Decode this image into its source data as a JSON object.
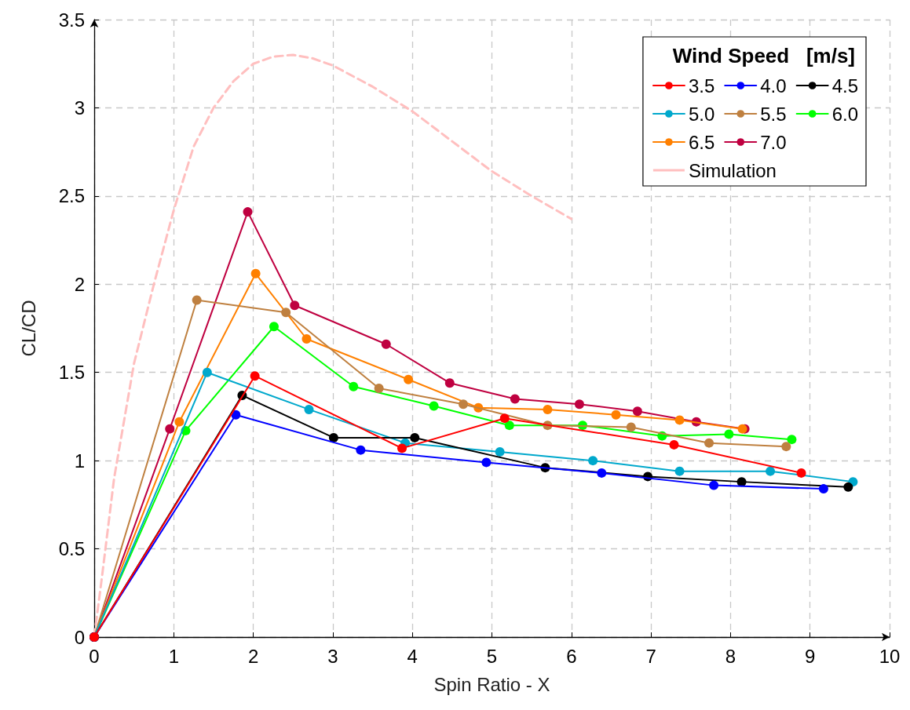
{
  "chart_data": {
    "type": "line",
    "xlabel": "Spin Ratio - X",
    "ylabel": "CL/CD",
    "legend_title": "Wind Speed   [m/s]",
    "legend": "top right",
    "grid": true,
    "marker": "circle",
    "line_style": "solid",
    "xlim": [
      0,
      10
    ],
    "xticks": [
      0,
      1,
      2,
      3,
      4,
      5,
      6,
      7,
      8,
      9,
      10
    ],
    "ylim": [
      0,
      3.5
    ],
    "yticks": [
      0,
      0.5,
      1,
      1.5,
      2,
      2.5,
      3,
      3.5
    ],
    "series": [
      {
        "name": "3.5",
        "color": "#ff0000",
        "x": [
          0,
          2.02,
          3.87,
          5.16,
          7.29,
          8.89
        ],
        "values": [
          0,
          1.48,
          1.07,
          1.24,
          1.09,
          0.93
        ]
      },
      {
        "name": "4.0",
        "color": "#0000ff",
        "x": [
          0,
          1.78,
          3.35,
          4.93,
          6.38,
          7.79,
          9.17
        ],
        "values": [
          0,
          1.26,
          1.06,
          0.99,
          0.93,
          0.86,
          0.84
        ]
      },
      {
        "name": "4.5",
        "color": "#000000",
        "x": [
          0,
          1.86,
          3.01,
          4.03,
          5.67,
          6.96,
          8.14,
          9.48
        ],
        "values": [
          0,
          1.37,
          1.13,
          1.13,
          0.96,
          0.91,
          0.88,
          0.85
        ]
      },
      {
        "name": "5.0",
        "color": "#00a8cc",
        "x": [
          0,
          1.42,
          2.7,
          3.91,
          5.1,
          6.27,
          7.36,
          8.5,
          9.54
        ],
        "values": [
          0,
          1.5,
          1.29,
          1.1,
          1.05,
          1.0,
          0.94,
          0.94,
          0.88
        ]
      },
      {
        "name": "5.5",
        "color": "#bf8040",
        "x": [
          0,
          1.29,
          2.41,
          3.58,
          4.64,
          5.7,
          6.75,
          7.73,
          8.7
        ],
        "values": [
          0,
          1.91,
          1.84,
          1.41,
          1.32,
          1.2,
          1.19,
          1.1,
          1.08
        ]
      },
      {
        "name": "6.0",
        "color": "#00ff00",
        "x": [
          0,
          1.15,
          2.26,
          3.26,
          4.27,
          5.22,
          6.14,
          7.14,
          7.98,
          8.77
        ],
        "values": [
          0,
          1.17,
          1.76,
          1.42,
          1.31,
          1.2,
          1.2,
          1.14,
          1.15,
          1.12
        ]
      },
      {
        "name": "6.5",
        "color": "#ff8000",
        "x": [
          0,
          1.07,
          2.03,
          2.67,
          3.95,
          4.83,
          5.7,
          6.56,
          7.36,
          8.15
        ],
        "values": [
          0,
          1.22,
          2.06,
          1.69,
          1.46,
          1.3,
          1.29,
          1.26,
          1.23,
          1.18
        ]
      },
      {
        "name": "7.0",
        "color": "#bf0040",
        "x": [
          0,
          0.95,
          1.93,
          2.52,
          3.67,
          4.47,
          5.29,
          6.1,
          6.83,
          7.57,
          8.18
        ],
        "values": [
          0,
          1.18,
          2.41,
          1.88,
          1.66,
          1.44,
          1.35,
          1.32,
          1.28,
          1.22,
          1.18
        ]
      },
      {
        "name": "Simulation",
        "color": "#ffbfbf",
        "marker": "none",
        "line_style": "dashed",
        "x": [
          0,
          0.1,
          0.25,
          0.5,
          0.75,
          1,
          1.25,
          1.5,
          1.75,
          2,
          2.25,
          2.5,
          2.75,
          3,
          3.5,
          4,
          4.5,
          5,
          5.5,
          6
        ],
        "values": [
          0,
          0.35,
          0.9,
          1.55,
          2.0,
          2.42,
          2.78,
          3.0,
          3.15,
          3.25,
          3.29,
          3.3,
          3.28,
          3.24,
          3.12,
          2.98,
          2.81,
          2.64,
          2.5,
          2.37
        ]
      }
    ]
  }
}
